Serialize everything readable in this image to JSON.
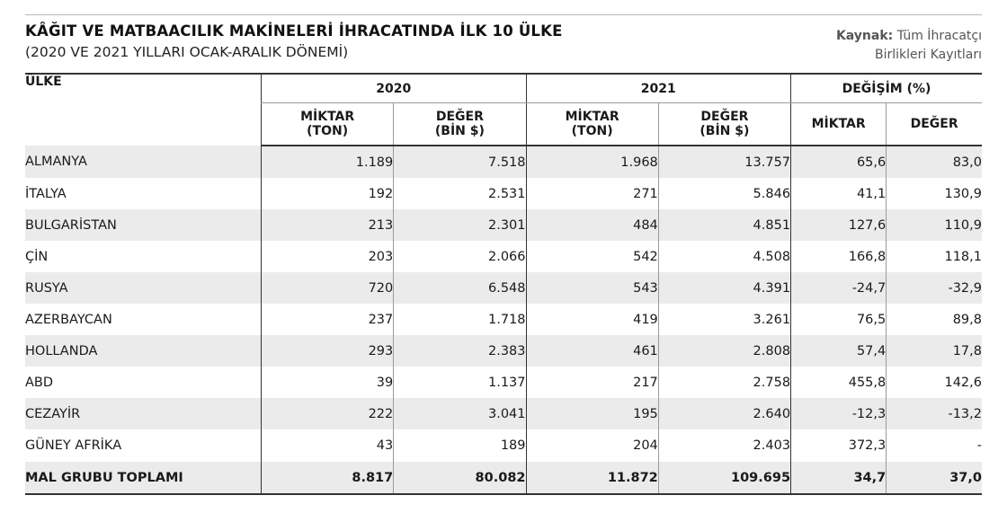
{
  "header": {
    "title": "KÂĞIT VE MATBAACILIK MAKİNELERİ İHRACATINDA İLK 10 ÜLKE",
    "subtitle": "(2020 VE 2021 YILLARI OCAK-ARALIK DÖNEMİ)",
    "source_label": "Kaynak:",
    "source_line1": "Tüm İhracatçı",
    "source_line2": "Birlikleri Kayıtları"
  },
  "table": {
    "country_header": "ÜLKE",
    "groups": [
      "2020",
      "2021",
      "DEĞİŞİM (%)"
    ],
    "sub": {
      "qty_line1": "MİKTAR",
      "qty_line2": "(TON)",
      "val_line1": "DEĞER",
      "val_line2": "(BİN $)",
      "chg_qty": "MİKTAR",
      "chg_val": "DEĞER"
    },
    "rows": [
      {
        "country": "ALMANYA",
        "q2020": "1.189",
        "v2020": "7.518",
        "q2021": "1.968",
        "v2021": "13.757",
        "cq": "65,6",
        "cv": "83,0"
      },
      {
        "country": "İTALYA",
        "q2020": "192",
        "v2020": "2.531",
        "q2021": "271",
        "v2021": "5.846",
        "cq": "41,1",
        "cv": "130,9"
      },
      {
        "country": "BULGARİSTAN",
        "q2020": "213",
        "v2020": "2.301",
        "q2021": "484",
        "v2021": "4.851",
        "cq": "127,6",
        "cv": "110,9"
      },
      {
        "country": "ÇİN",
        "q2020": "203",
        "v2020": "2.066",
        "q2021": "542",
        "v2021": "4.508",
        "cq": "166,8",
        "cv": "118,1"
      },
      {
        "country": "RUSYA",
        "q2020": "720",
        "v2020": "6.548",
        "q2021": "543",
        "v2021": "4.391",
        "cq": "-24,7",
        "cv": "-32,9"
      },
      {
        "country": "AZERBAYCAN",
        "q2020": "237",
        "v2020": "1.718",
        "q2021": "419",
        "v2021": "3.261",
        "cq": "76,5",
        "cv": "89,8"
      },
      {
        "country": "HOLLANDA",
        "q2020": "293",
        "v2020": "2.383",
        "q2021": "461",
        "v2021": "2.808",
        "cq": "57,4",
        "cv": "17,8"
      },
      {
        "country": "ABD",
        "q2020": "39",
        "v2020": "1.137",
        "q2021": "217",
        "v2021": "2.758",
        "cq": "455,8",
        "cv": "142,6"
      },
      {
        "country": "CEZAYİR",
        "q2020": "222",
        "v2020": "3.041",
        "q2021": "195",
        "v2021": "2.640",
        "cq": "-12,3",
        "cv": "-13,2"
      },
      {
        "country": "GÜNEY AFRİKA",
        "q2020": "43",
        "v2020": "189",
        "q2021": "204",
        "v2021": "2.403",
        "cq": "372,3",
        "cv": "-"
      }
    ],
    "total": {
      "country": "MAL GRUBU TOPLAMI",
      "q2020": "8.817",
      "v2020": "80.082",
      "q2021": "11.872",
      "v2021": "109.695",
      "cq": "34,7",
      "cv": "37,0"
    }
  }
}
